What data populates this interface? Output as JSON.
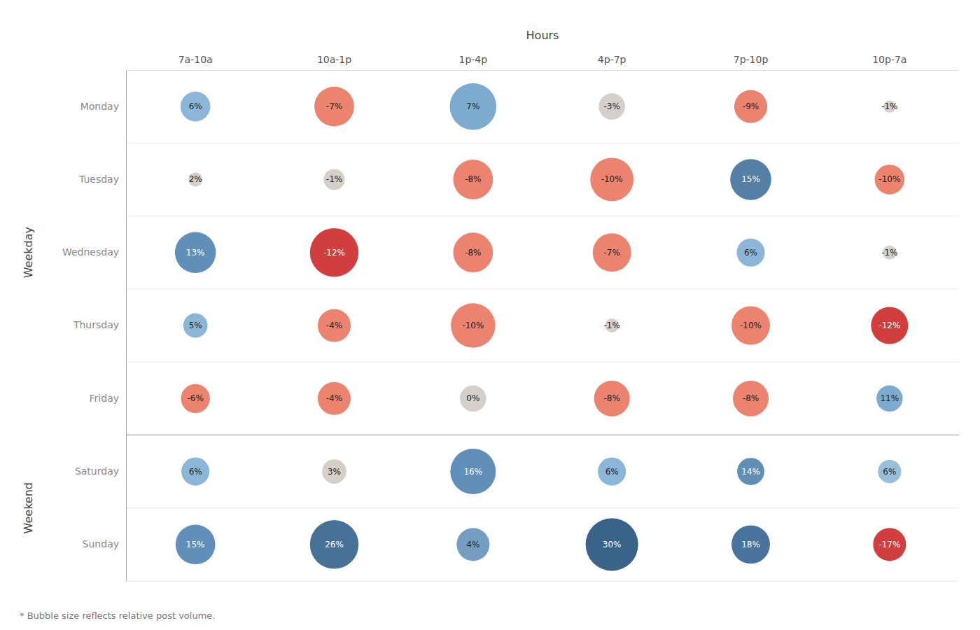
{
  "chart_data": {
    "type": "bubble",
    "xlabel": "Hours",
    "categories": [
      "7a-10a",
      "10a-1p",
      "1p-4p",
      "4p-7p",
      "7p-10p",
      "10p-7a"
    ],
    "y_categories": [
      "Monday",
      "Tuesday",
      "Wednesday",
      "Thursday",
      "Friday",
      "Saturday",
      "Sunday"
    ],
    "ylabel_groups": [
      {
        "label": "Weekday",
        "categories": [
          "Monday",
          "Tuesday",
          "Wednesday",
          "Thursday",
          "Friday"
        ]
      },
      {
        "label": "Weekend",
        "categories": [
          "Saturday",
          "Sunday"
        ]
      }
    ],
    "values": [
      [
        6,
        -7,
        7,
        -3,
        -9,
        -1
      ],
      [
        2,
        -1,
        -8,
        -10,
        15,
        -10
      ],
      [
        13,
        -12,
        -8,
        -7,
        6,
        -1
      ],
      [
        5,
        -4,
        -10,
        -1,
        -10,
        -12
      ],
      [
        -6,
        -4,
        0,
        -8,
        -8,
        11
      ],
      [
        6,
        3,
        16,
        6,
        14,
        6
      ],
      [
        15,
        26,
        4,
        30,
        18,
        -17
      ]
    ],
    "value_labels": [
      [
        "6%",
        "-7%",
        "7%",
        "-3%",
        "-9%",
        "-1%"
      ],
      [
        "2%",
        "-1%",
        "-8%",
        "-10%",
        "15%",
        "-10%"
      ],
      [
        "13%",
        "-12%",
        "-8%",
        "-7%",
        "6%",
        "-1%"
      ],
      [
        "5%",
        "-4%",
        "-10%",
        "-1%",
        "-10%",
        "-12%"
      ],
      [
        "-6%",
        "-4%",
        "0%",
        "-8%",
        "-8%",
        "11%"
      ],
      [
        "6%",
        "3%",
        "16%",
        "6%",
        "14%",
        "6%"
      ],
      [
        "15%",
        "26%",
        "4%",
        "30%",
        "18%",
        "-17%"
      ]
    ],
    "sizes": [
      [
        900,
        1600,
        2200,
        700,
        1100,
        150
      ],
      [
        200,
        450,
        1600,
        1900,
        1700,
        900
      ],
      [
        1700,
        2400,
        1600,
        1500,
        800,
        200
      ],
      [
        600,
        1100,
        2000,
        200,
        1500,
        1400
      ],
      [
        850,
        1100,
        700,
        1300,
        1300,
        700
      ],
      [
        800,
        600,
        2100,
        800,
        750,
        550
      ],
      [
        1600,
        2400,
        1100,
        2800,
        1500,
        1100
      ]
    ],
    "colors": [
      [
        "#7bacd1",
        "#e8725a",
        "#6a9fc8",
        "#cec8c2",
        "#e8725a",
        "#cec8c2"
      ],
      [
        "#cec8c2",
        "#cec8c2",
        "#e8725a",
        "#e8725a",
        "#3d6e9a",
        "#e8725a"
      ],
      [
        "#4a80b0",
        "#cc2222",
        "#e8725a",
        "#e8725a",
        "#7bacd1",
        "#cec8c2"
      ],
      [
        "#7bacd1",
        "#e8725a",
        "#e8725a",
        "#cec8c2",
        "#e8725a",
        "#cc2222"
      ],
      [
        "#e8725a",
        "#e8725a",
        "#cec8c2",
        "#e8725a",
        "#e8725a",
        "#6a9fc8"
      ],
      [
        "#7bacd1",
        "#cec8c2",
        "#4a80b0",
        "#7bacd1",
        "#4a7fa8",
        "#8ab5d5"
      ],
      [
        "#4a80b0",
        "#2d5f8a",
        "#6090b8",
        "#1e4d78",
        "#2d6090",
        "#cc2222"
      ]
    ],
    "data_labels": true,
    "grid": true,
    "footnote": "* Bubble size reflects relative post volume."
  }
}
